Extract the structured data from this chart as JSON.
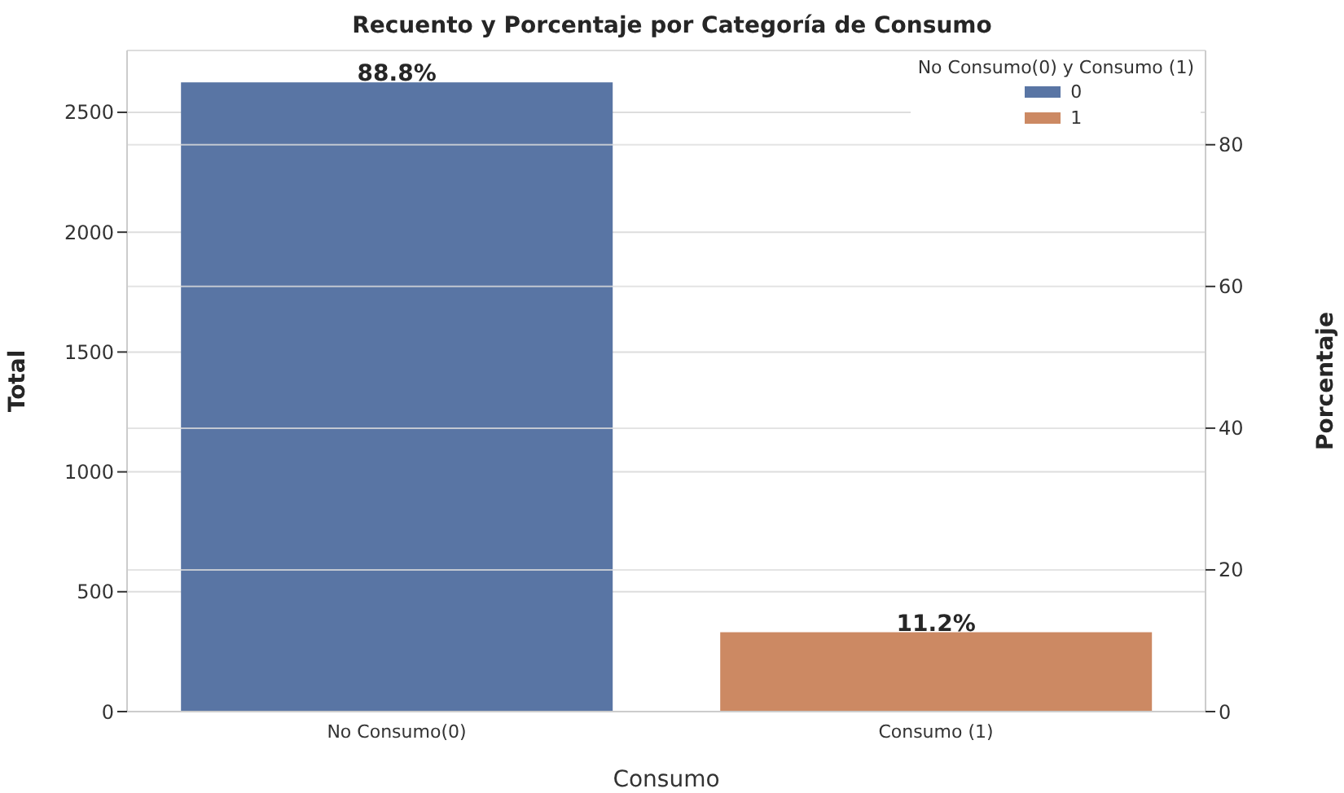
{
  "chart_data": {
    "type": "bar",
    "title": "Recuento y Porcentaje por Categoría de Consumo",
    "xlabel": "Consumo",
    "ylabel": "Total",
    "y2label": "Porcentaje",
    "legend_title": "No Consumo(0) y Consumo (1)",
    "categories": [
      "No Consumo(0)",
      "Consumo (1)"
    ],
    "series": [
      {
        "name": "0",
        "color": "#5975a4",
        "axis": "y2",
        "values": [
          88.8,
          null
        ],
        "value_labels": [
          "88.8%",
          null
        ]
      },
      {
        "name": "1",
        "color": "#cc8963",
        "axis": "y2",
        "values": [
          null,
          11.2
        ],
        "value_labels": [
          null,
          "11.2%"
        ]
      }
    ],
    "ylim": [
      0,
      2758
    ],
    "yticks": [
      0,
      500,
      1000,
      1500,
      2000,
      2500
    ],
    "y2lim": [
      0,
      93.3
    ],
    "y2ticks": [
      0,
      20,
      40,
      60,
      80
    ],
    "grid": true,
    "legend": "top right"
  }
}
